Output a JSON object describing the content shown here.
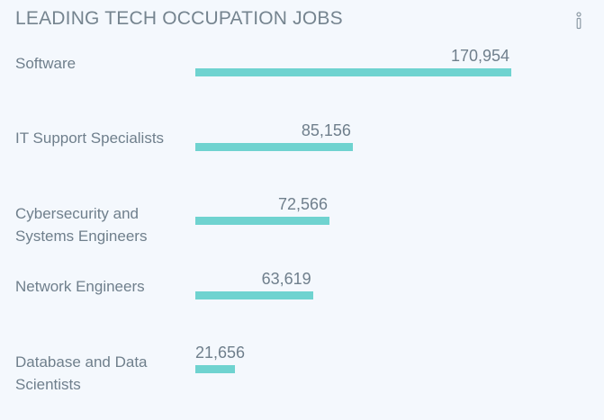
{
  "chart_data": {
    "type": "bar",
    "orientation": "horizontal",
    "title": "LEADING TECH OCCUPATION JOBS",
    "categories": [
      "Software",
      "IT Support Specialists",
      "Cybersecurity and Systems Engineers",
      "Network Engineers",
      "Database and Data Scientists"
    ],
    "values": [
      170954,
      85156,
      72566,
      63619,
      21656
    ],
    "value_labels": [
      "170,954",
      "85,156",
      "72,566",
      "63,619",
      "21,656"
    ],
    "xlim": [
      0,
      170954
    ],
    "grid": false,
    "bar_color": "#6fd3d0"
  },
  "icons": {
    "info": "info-icon"
  }
}
